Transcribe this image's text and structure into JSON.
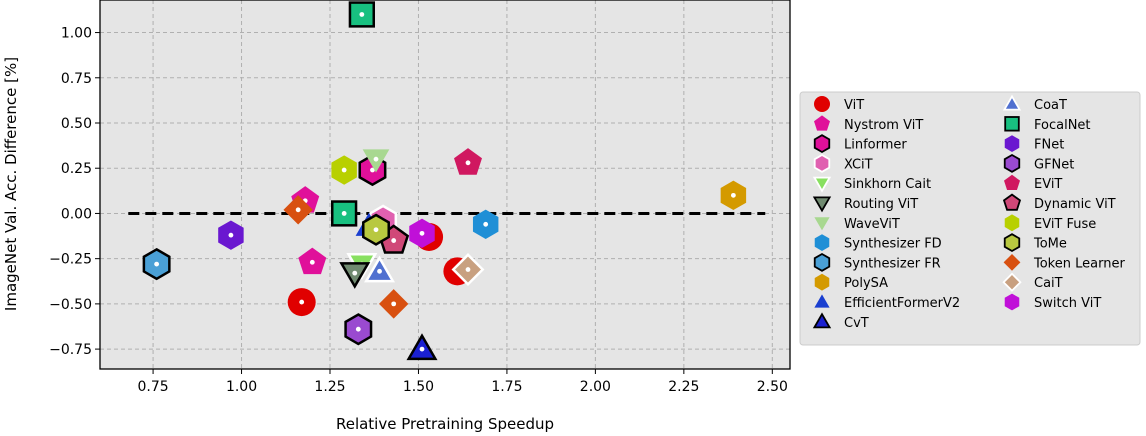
{
  "chart_data": {
    "type": "scatter",
    "xlabel": "Relative Pretraining Speedup",
    "ylabel": "ImageNet Val. Acc. Difference [%]",
    "xlim": [
      0.6,
      2.55
    ],
    "ylim": [
      -0.86,
      1.18
    ],
    "xticks": [
      0.75,
      1.0,
      1.25,
      1.5,
      1.75,
      2.0,
      2.25,
      2.5
    ],
    "xtick_labels": [
      "0.75",
      "1.00",
      "1.25",
      "1.50",
      "1.75",
      "2.00",
      "2.25",
      "2.50"
    ],
    "yticks": [
      1.0,
      0.75,
      0.5,
      0.25,
      0.0,
      -0.25,
      -0.5,
      -0.75
    ],
    "ytick_labels": [
      "1.00",
      "0.75",
      "0.50",
      "0.25",
      "0.00",
      "−0.25",
      "−0.50",
      "−0.75"
    ],
    "grid": true,
    "baseline": {
      "y": 0,
      "x_range": [
        0.68,
        2.48
      ],
      "style": "dashed"
    },
    "legend_position": "right",
    "series": [
      {
        "name": "ViT",
        "color": "#e00000",
        "marker": "circle",
        "points": [
          [
            1.17,
            -0.49
          ],
          [
            1.53,
            -0.13
          ],
          [
            1.61,
            -0.32
          ]
        ]
      },
      {
        "name": "Nystrom ViT",
        "color": "#e0109a",
        "marker": "pentagon",
        "points": [
          [
            1.18,
            0.07
          ],
          [
            1.2,
            -0.27
          ]
        ]
      },
      {
        "name": "Linformer",
        "color": "#e0109a",
        "marker": "hexagon-outlined",
        "points": [
          [
            1.37,
            0.24
          ]
        ]
      },
      {
        "name": "XCiT",
        "color": "#e060b0",
        "marker": "hexagon-white-edge",
        "points": [
          [
            1.4,
            -0.04
          ]
        ]
      },
      {
        "name": "Sinkhorn Cait",
        "color": "#88e060",
        "marker": "triangle-down-white-edge",
        "points": [
          [
            1.34,
            -0.28
          ]
        ]
      },
      {
        "name": "Routing ViT",
        "color": "#708a70",
        "marker": "triangle-down-outlined",
        "points": [
          [
            1.32,
            -0.33
          ]
        ]
      },
      {
        "name": "WaveViT",
        "color": "#a8d890",
        "marker": "triangle-down",
        "points": [
          [
            1.38,
            0.3
          ]
        ]
      },
      {
        "name": "Synthesizer FD",
        "color": "#1f8fd6",
        "marker": "hexagon",
        "points": [
          [
            1.69,
            -0.06
          ]
        ]
      },
      {
        "name": "Synthesizer FR",
        "color": "#4aa0d6",
        "marker": "hexagon-outlined",
        "points": [
          [
            0.76,
            -0.28
          ]
        ]
      },
      {
        "name": "PolySA",
        "color": "#d49a00",
        "marker": "hexagon",
        "points": [
          [
            2.39,
            0.1
          ]
        ]
      },
      {
        "name": "EfficientFormerV2",
        "color": "#1a3fd0",
        "marker": "triangle-up",
        "points": [
          [
            1.36,
            -0.07
          ]
        ]
      },
      {
        "name": "CvT",
        "color": "#1a20d0",
        "marker": "triangle-up-outlined",
        "points": [
          [
            1.51,
            -0.75
          ]
        ]
      },
      {
        "name": "CoaT",
        "color": "#5070d0",
        "marker": "triangle-up-white-edge",
        "points": [
          [
            1.39,
            -0.32
          ]
        ]
      },
      {
        "name": "FocalNet",
        "color": "#18c080",
        "marker": "square-outlined",
        "points": [
          [
            1.34,
            1.1
          ],
          [
            1.29,
            0.0
          ]
        ]
      },
      {
        "name": "FNet",
        "color": "#6a18d0",
        "marker": "hexagon",
        "points": [
          [
            0.97,
            -0.12
          ]
        ]
      },
      {
        "name": "GFNet",
        "color": "#9a4ad0",
        "marker": "hexagon-outlined",
        "points": [
          [
            1.33,
            -0.64
          ]
        ]
      },
      {
        "name": "EViT",
        "color": "#d01860",
        "marker": "pentagon",
        "points": [
          [
            1.64,
            0.28
          ]
        ]
      },
      {
        "name": "Dynamic ViT",
        "color": "#d04878",
        "marker": "pentagon-outlined",
        "points": [
          [
            1.43,
            -0.15
          ]
        ]
      },
      {
        "name": "EViT Fuse",
        "color": "#b8d000",
        "marker": "hexagon",
        "points": [
          [
            1.29,
            0.24
          ]
        ]
      },
      {
        "name": "ToMe",
        "color": "#b8c840",
        "marker": "hexagon-outlined",
        "points": [
          [
            1.38,
            -0.09
          ]
        ]
      },
      {
        "name": "Token Learner",
        "color": "#d85010",
        "marker": "diamond",
        "points": [
          [
            1.16,
            0.02
          ],
          [
            1.43,
            -0.5
          ]
        ]
      },
      {
        "name": "CaiT",
        "color": "#c8a080",
        "marker": "diamond-white-edge",
        "points": [
          [
            1.64,
            -0.31
          ]
        ]
      },
      {
        "name": "Switch ViT",
        "color": "#c010d8",
        "marker": "hexagon",
        "points": [
          [
            1.51,
            -0.11
          ]
        ]
      }
    ]
  }
}
